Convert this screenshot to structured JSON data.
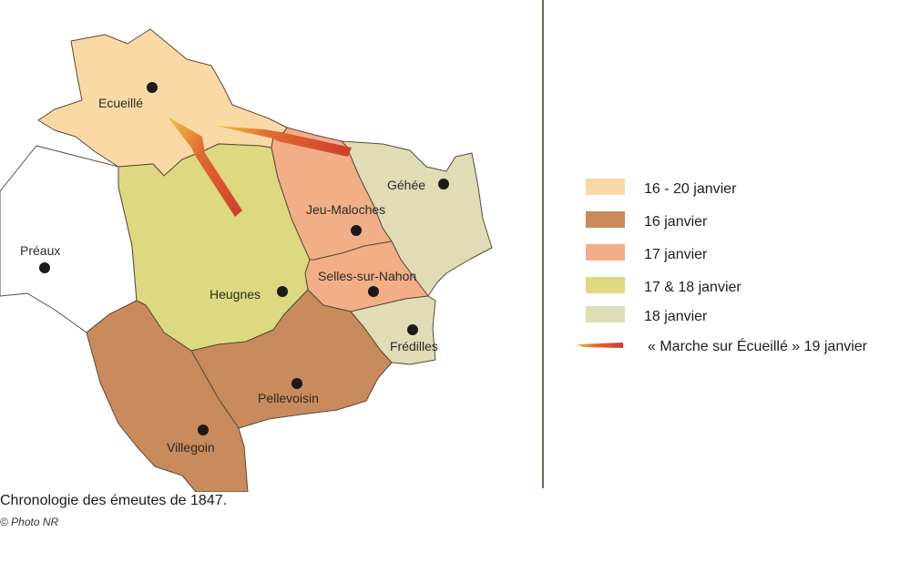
{
  "colors": {
    "period_16_20": "#fbd9a5",
    "period_16": "#c98a5c",
    "period_17": "#f2ae87",
    "period_17_18": "#dcd980",
    "period_18": "#dfdcb6",
    "none": "#ffffff",
    "march_arrow": "#cf3d2e",
    "march_arrow_tip": "#f2b53a",
    "border": "#5a4a3a",
    "divider": "#6b6b55"
  },
  "towns": [
    {
      "name": "Ecueillé",
      "period": "16 - 20 janvier"
    },
    {
      "name": "Préaux",
      "period": ""
    },
    {
      "name": "Jeu-Maloches",
      "period": "17 janvier"
    },
    {
      "name": "Géhée",
      "period": "18 janvier"
    },
    {
      "name": "Heugnes",
      "period": "17 & 18 janvier"
    },
    {
      "name": "Selles-sur-Nahon",
      "period": "17 janvier"
    },
    {
      "name": "Frédilles",
      "period": "18 janvier"
    },
    {
      "name": "Pellevoisin",
      "period": "16 janvier"
    },
    {
      "name": "Villegoin",
      "period": "16 janvier"
    }
  ],
  "legend": [
    {
      "label": "16 - 20 janvier",
      "color": "#fbd9a5"
    },
    {
      "label": "16 janvier",
      "color": "#c98a5c"
    },
    {
      "label": "17 janvier",
      "color": "#f2ae87"
    },
    {
      "label": "17 & 18 janvier",
      "color": "#dcd980"
    },
    {
      "label": "18 janvier",
      "color": "#dfdcb6"
    },
    {
      "label": "« Marche sur Écueillé » 19 janvier",
      "icon": "march-arrow-icon"
    }
  ],
  "caption": "Chronologie des émeutes de 1847.",
  "credit": "© Photo NR"
}
